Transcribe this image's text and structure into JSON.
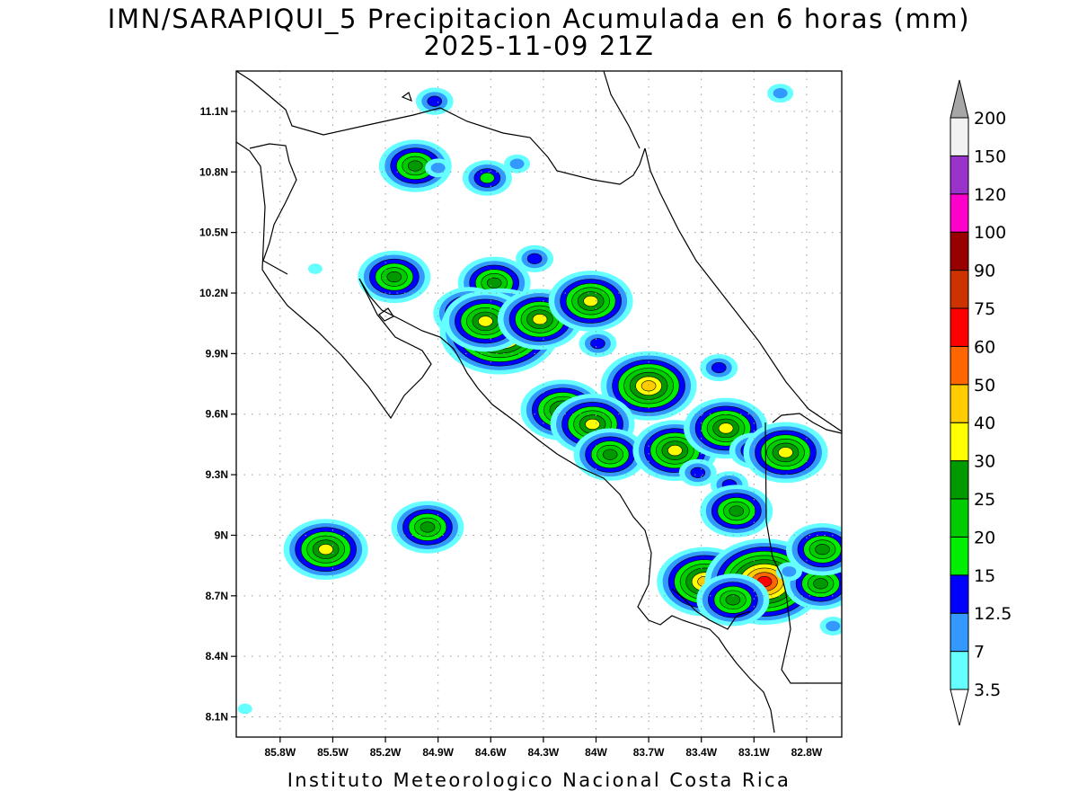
{
  "title_line1": "IMN/SARAPIQUI_5 Precipitacion Acumulada en 6 horas (mm)",
  "title_line2": "2025-11-09 21Z",
  "footer": "Instituto Meteorologico Nacional Costa Rica",
  "map": {
    "lon_range": [
      -86.05,
      -82.6
    ],
    "lat_range": [
      8.0,
      11.3
    ],
    "grid": "dotted",
    "lat_labels": [
      "11.1N",
      "10.8N",
      "10.5N",
      "10.2N",
      "9.9N",
      "9.6N",
      "9.3N",
      "9N",
      "8.7N",
      "8.4N",
      "8.1N"
    ],
    "lat_values": [
      11.1,
      10.8,
      10.5,
      10.2,
      9.9,
      9.6,
      9.3,
      9.0,
      8.7,
      8.4,
      8.1
    ],
    "lon_labels": [
      "85.8W",
      "85.5W",
      "85.2W",
      "84.9W",
      "84.6W",
      "84.3W",
      "84W",
      "83.7W",
      "83.4W",
      "83.1W",
      "82.8W"
    ],
    "lon_values": [
      -85.8,
      -85.5,
      -85.2,
      -84.9,
      -84.6,
      -84.3,
      -84.0,
      -83.7,
      -83.4,
      -83.1,
      -82.8
    ]
  },
  "colorbar": {
    "labels": [
      "3.5",
      "7",
      "12.5",
      "15",
      "20",
      "25",
      "30",
      "40",
      "50",
      "60",
      "75",
      "90",
      "100",
      "120",
      "150",
      "200"
    ],
    "colors": [
      "#66ffff",
      "#3399ff",
      "#0000ff",
      "#00ee00",
      "#00cc00",
      "#009900",
      "#ffff00",
      "#ffcc00",
      "#ff6600",
      "#ff0000",
      "#cc3300",
      "#990000",
      "#ff00cc",
      "#9933cc",
      "#f2f2f2",
      "#a6a6a6"
    ]
  },
  "precip_cells": [
    {
      "lon": -85.03,
      "lat": 10.83,
      "mm": 25
    },
    {
      "lon": -84.9,
      "lat": 10.82,
      "mm": 7
    },
    {
      "lon": -84.62,
      "lat": 10.77,
      "mm": 15
    },
    {
      "lon": -84.45,
      "lat": 10.84,
      "mm": 7
    },
    {
      "lon": -84.92,
      "lat": 11.15,
      "mm": 12.5
    },
    {
      "lon": -82.95,
      "lat": 11.19,
      "mm": 7
    },
    {
      "lon": -85.15,
      "lat": 10.28,
      "mm": 25
    },
    {
      "lon": -85.6,
      "lat": 10.32,
      "mm": 3.5
    },
    {
      "lon": -84.58,
      "lat": 10.25,
      "mm": 25
    },
    {
      "lon": -84.72,
      "lat": 10.1,
      "mm": 25
    },
    {
      "lon": -84.55,
      "lat": 10.01,
      "mm": 60
    },
    {
      "lon": -84.63,
      "lat": 10.06,
      "mm": 30
    },
    {
      "lon": -84.32,
      "lat": 10.07,
      "mm": 30
    },
    {
      "lon": -84.35,
      "lat": 10.37,
      "mm": 12.5
    },
    {
      "lon": -84.03,
      "lat": 10.16,
      "mm": 30
    },
    {
      "lon": -83.99,
      "lat": 9.95,
      "mm": 12.5
    },
    {
      "lon": -83.7,
      "lat": 9.74,
      "mm": 40
    },
    {
      "lon": -84.19,
      "lat": 9.62,
      "mm": 30
    },
    {
      "lon": -84.02,
      "lat": 9.55,
      "mm": 30
    },
    {
      "lon": -83.92,
      "lat": 9.4,
      "mm": 25
    },
    {
      "lon": -83.55,
      "lat": 9.42,
      "mm": 30
    },
    {
      "lon": -83.3,
      "lat": 9.83,
      "mm": 12.5
    },
    {
      "lon": -83.26,
      "lat": 9.53,
      "mm": 30
    },
    {
      "lon": -83.1,
      "lat": 9.42,
      "mm": 15
    },
    {
      "lon": -82.92,
      "lat": 9.41,
      "mm": 30
    },
    {
      "lon": -83.42,
      "lat": 9.31,
      "mm": 12.5
    },
    {
      "lon": -83.24,
      "lat": 9.25,
      "mm": 12.5
    },
    {
      "lon": -83.2,
      "lat": 9.12,
      "mm": 25
    },
    {
      "lon": -84.96,
      "lat": 9.04,
      "mm": 25
    },
    {
      "lon": -85.54,
      "lat": 8.93,
      "mm": 30
    },
    {
      "lon": -83.38,
      "lat": 8.77,
      "mm": 40
    },
    {
      "lon": -83.04,
      "lat": 8.77,
      "mm": 60
    },
    {
      "lon": -83.22,
      "lat": 8.68,
      "mm": 25
    },
    {
      "lon": -82.72,
      "lat": 8.76,
      "mm": 25
    },
    {
      "lon": -82.71,
      "lat": 8.93,
      "mm": 25
    },
    {
      "lon": -82.9,
      "lat": 8.82,
      "mm": 7
    },
    {
      "lon": -86.0,
      "lat": 8.14,
      "mm": 3.5
    },
    {
      "lon": -82.65,
      "lat": 8.55,
      "mm": 7
    }
  ]
}
